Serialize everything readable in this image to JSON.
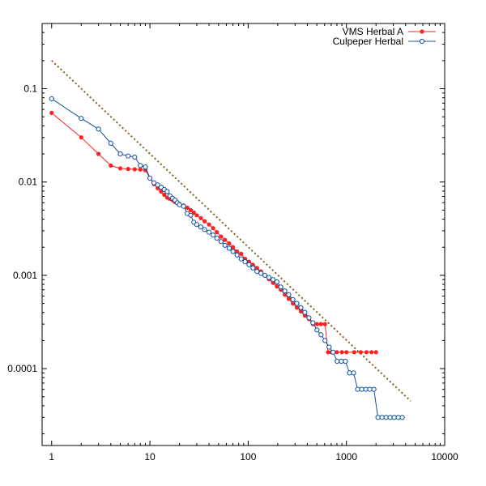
{
  "chart_data": {
    "type": "line",
    "title": "",
    "xlabel": "",
    "ylabel": "",
    "xscale": "log",
    "yscale": "log",
    "xlim": [
      0.8,
      10000
    ],
    "ylim": [
      1.5e-05,
      0.5
    ],
    "grid": false,
    "legend_position": "top-right",
    "x_ticks": [
      {
        "value": 1,
        "label": "1"
      },
      {
        "value": 10,
        "label": "10"
      },
      {
        "value": 100,
        "label": "100"
      },
      {
        "value": 1000,
        "label": "1000"
      },
      {
        "value": 10000,
        "label": "10000"
      }
    ],
    "y_ticks": [
      {
        "value": 0.0001,
        "label": "0.0001"
      },
      {
        "value": 0.001,
        "label": "0.001"
      },
      {
        "value": 0.01,
        "label": "0.01"
      },
      {
        "value": 0.1,
        "label": "0.1"
      }
    ],
    "series": [
      {
        "name": "VMS Herbal A",
        "color": "#ff2020",
        "marker": "filled-circle",
        "x": [
          1,
          2,
          3,
          4,
          5,
          6,
          7,
          8,
          9,
          10,
          11,
          12,
          13,
          14,
          15,
          16,
          17,
          18,
          19,
          20,
          22,
          24,
          26,
          28,
          30,
          33,
          36,
          40,
          44,
          48,
          53,
          58,
          64,
          70,
          77,
          85,
          93,
          102,
          112,
          123,
          135,
          148,
          163,
          179,
          196,
          215,
          236,
          259,
          285,
          313,
          344,
          378,
          415,
          456,
          501,
          551,
          605,
          650,
          700,
          800,
          900,
          1000,
          1200,
          1400,
          1600,
          1800,
          2000
        ],
        "y": [
          0.055,
          0.03,
          0.02,
          0.015,
          0.014,
          0.0138,
          0.0137,
          0.0136,
          0.0134,
          0.011,
          0.0095,
          0.0086,
          0.0079,
          0.0073,
          0.0068,
          0.0066,
          0.0064,
          0.0061,
          0.006,
          0.0058,
          0.0056,
          0.0053,
          0.005,
          0.0047,
          0.0044,
          0.0041,
          0.0038,
          0.0035,
          0.0032,
          0.0029,
          0.0026,
          0.0024,
          0.0022,
          0.002,
          0.0018,
          0.0017,
          0.0015,
          0.0014,
          0.0013,
          0.0012,
          0.0011,
          0.001,
          0.00091,
          0.00083,
          0.00076,
          0.0007,
          0.00062,
          0.00056,
          0.0005,
          0.00045,
          0.00041,
          0.00037,
          0.00034,
          0.0003,
          0.0003,
          0.0003,
          0.0003,
          0.00015,
          0.00015,
          0.00015,
          0.00015,
          0.00015,
          0.00015,
          0.00015,
          0.00015,
          0.00015,
          0.00015
        ]
      },
      {
        "name": "Culpeper Herbal",
        "color": "#1050a0",
        "marker": "open-circle",
        "x": [
          1,
          2,
          3,
          4,
          5,
          6,
          7,
          8,
          9,
          10,
          11,
          12,
          13,
          14,
          15,
          16,
          17,
          18,
          19,
          20,
          22,
          24,
          26,
          28,
          30,
          33,
          36,
          40,
          44,
          48,
          53,
          58,
          64,
          70,
          77,
          85,
          93,
          102,
          112,
          123,
          135,
          148,
          163,
          179,
          196,
          215,
          236,
          259,
          285,
          313,
          344,
          378,
          415,
          456,
          501,
          551,
          605,
          666,
          733,
          806,
          887,
          976,
          1074,
          1181,
          1300,
          1430,
          1573,
          1730,
          1903,
          2093,
          2302,
          2533,
          2786,
          3065,
          3371,
          3708
        ],
        "y": [
          0.078,
          0.048,
          0.037,
          0.026,
          0.02,
          0.019,
          0.0185,
          0.015,
          0.0145,
          0.011,
          0.0098,
          0.0093,
          0.0088,
          0.0083,
          0.0079,
          0.0071,
          0.0067,
          0.0064,
          0.006,
          0.0057,
          0.0055,
          0.0046,
          0.0044,
          0.0037,
          0.0035,
          0.0033,
          0.0031,
          0.0029,
          0.0027,
          0.0025,
          0.0023,
          0.0021,
          0.00195,
          0.0018,
          0.00165,
          0.0015,
          0.0014,
          0.0013,
          0.0012,
          0.0011,
          0.00105,
          0.001,
          0.00095,
          0.0009,
          0.00085,
          0.00075,
          0.00068,
          0.00062,
          0.00055,
          0.0005,
          0.00045,
          0.0004,
          0.00035,
          0.00031,
          0.00026,
          0.00023,
          0.0002,
          0.00017,
          0.00015,
          0.00012,
          0.00012,
          0.00012,
          9e-05,
          9e-05,
          6e-05,
          6e-05,
          6e-05,
          6e-05,
          6e-05,
          3e-05,
          3e-05,
          3e-05,
          3e-05,
          3e-05,
          3e-05,
          3e-05
        ]
      },
      {
        "name": "",
        "color": "#806020",
        "style": "dotted",
        "x": [
          1,
          4500
        ],
        "y": [
          0.2,
          4.5e-05
        ]
      }
    ]
  }
}
